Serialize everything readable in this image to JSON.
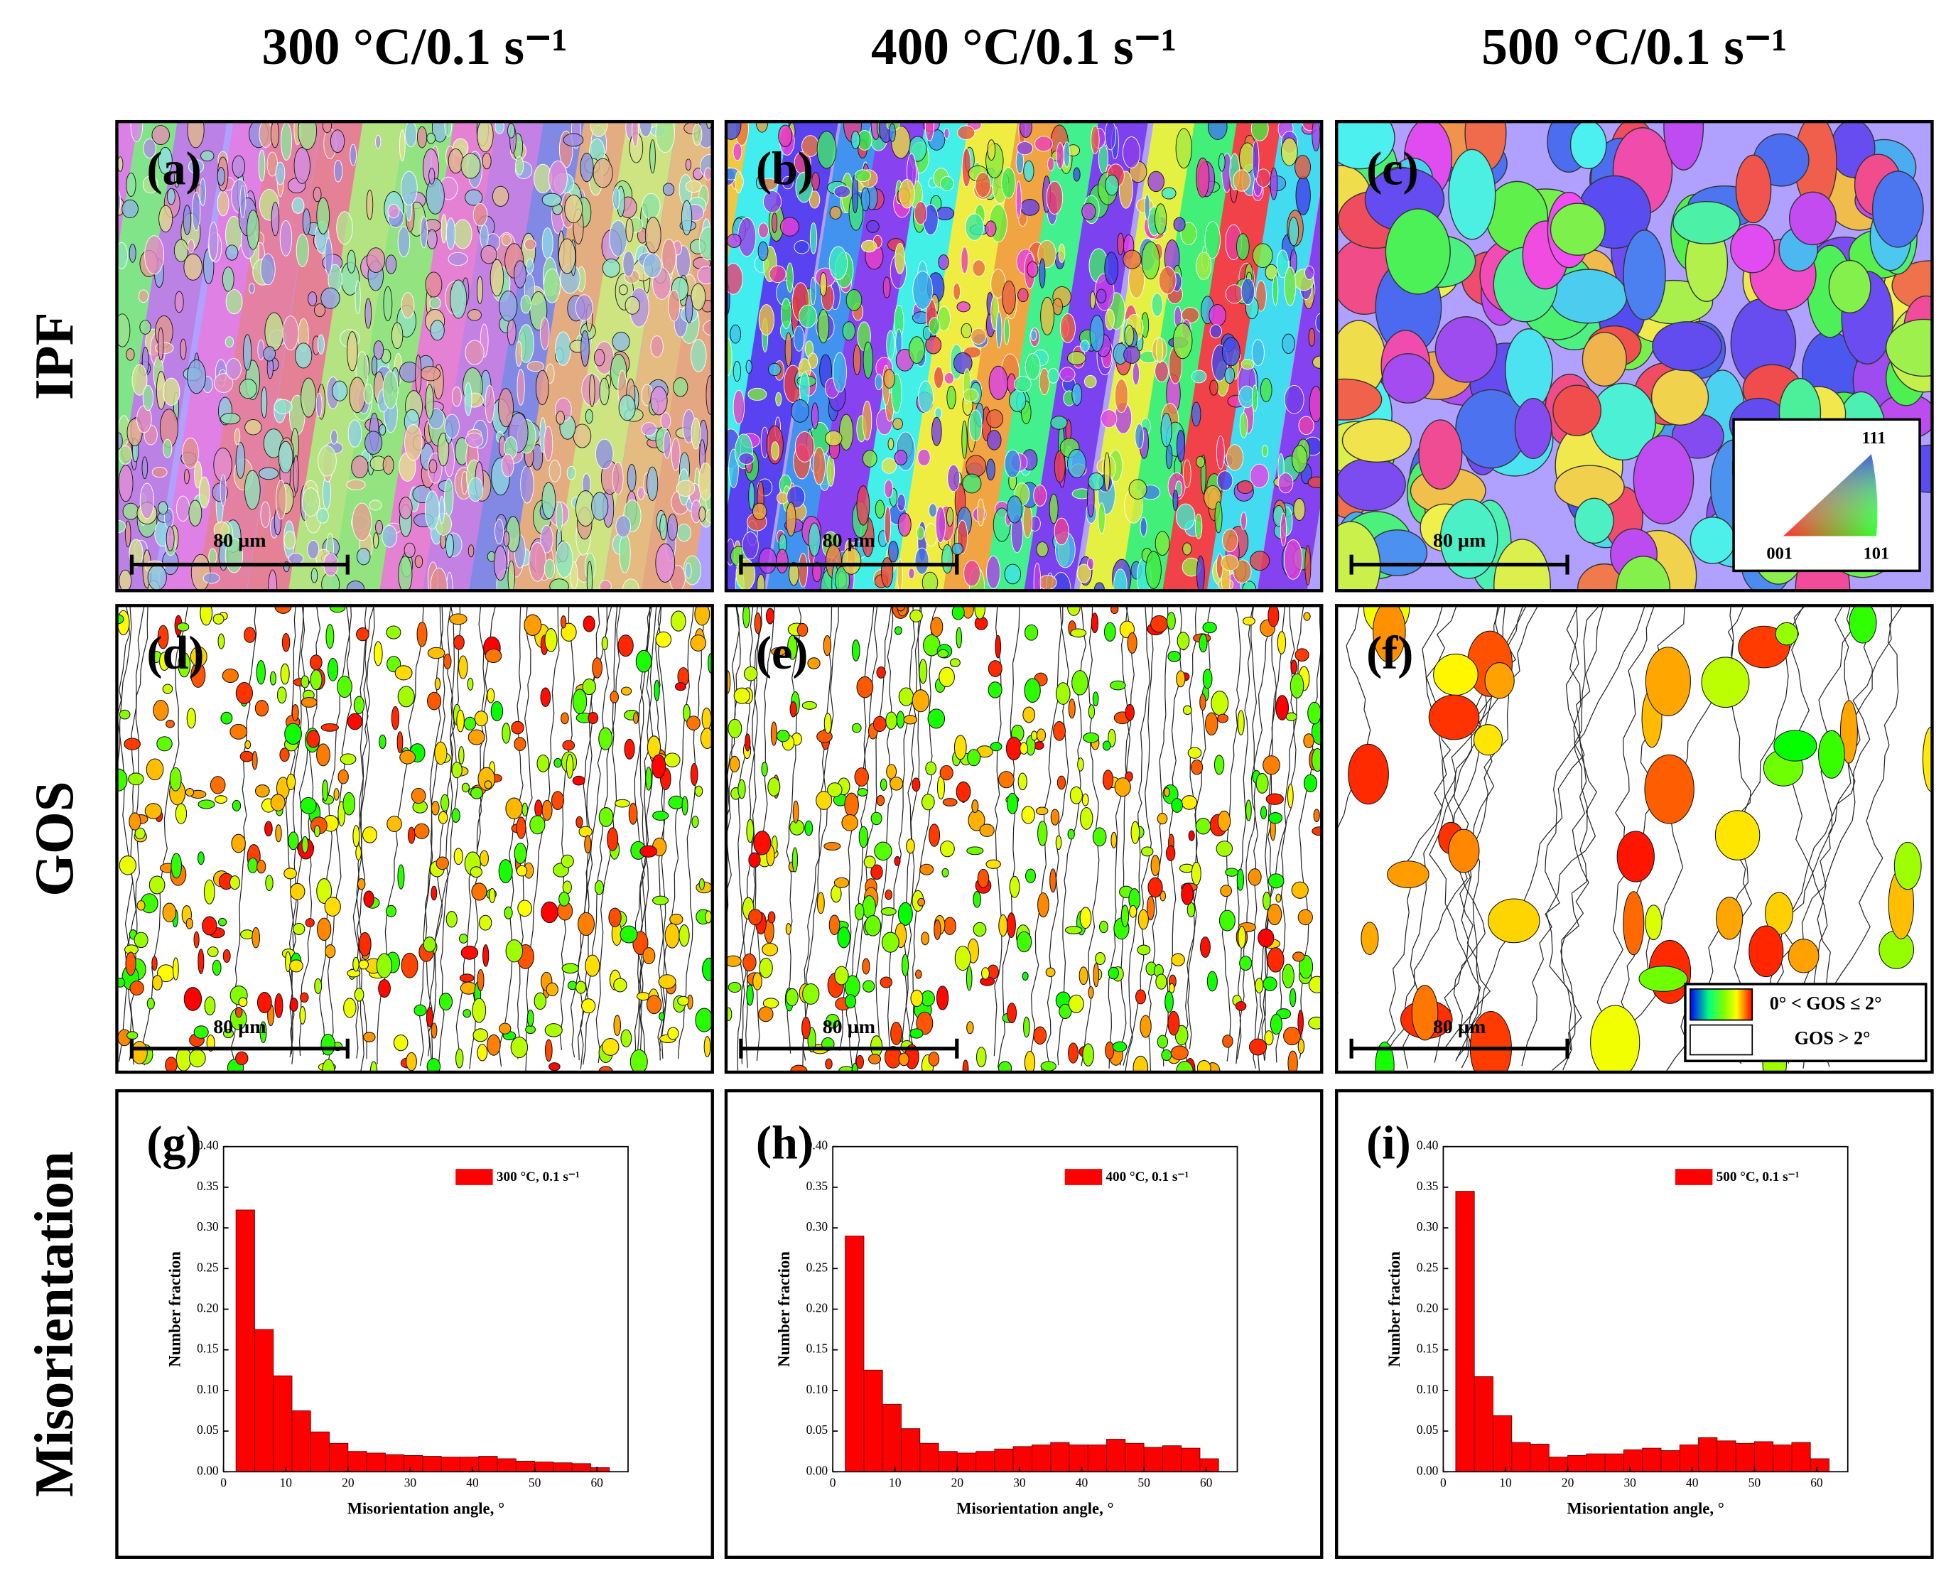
{
  "column_titles": [
    "300 °C/0.1 s⁻¹",
    "400 °C/0.1 s⁻¹",
    "500 °C/0.1 s⁻¹"
  ],
  "row_labels": [
    "IPF",
    "GOS",
    "Misorientation"
  ],
  "panel_labels": [
    "(a)",
    "(b)",
    "(c)",
    "(d)",
    "(e)",
    "(f)",
    "(g)",
    "(h)",
    "(i)"
  ],
  "scale_bar": "80 µm",
  "ipf_legend": {
    "labels": [
      "111",
      "001",
      "101"
    ]
  },
  "gos_legend": {
    "labels": [
      "0° < GOS ≤ 2°",
      "GOS >  2°"
    ]
  },
  "chart_data": [
    {
      "type": "histogram",
      "xlabel": "Misorientation angle, °",
      "ylabel": "Number fraction",
      "bins": [
        2,
        5,
        8,
        11,
        14,
        17,
        20,
        23,
        26,
        29,
        32,
        35,
        38,
        41,
        44,
        47,
        50,
        53,
        56,
        59,
        62
      ],
      "series": [
        {
          "name": "300 °C, 0.1 s⁻¹",
          "color": "#ff0000",
          "values": [
            0.322,
            0.175,
            0.118,
            0.075,
            0.049,
            0.035,
            0.025,
            0.023,
            0.021,
            0.02,
            0.019,
            0.018,
            0.018,
            0.019,
            0.016,
            0.013,
            0.012,
            0.011,
            0.01,
            0.005
          ]
        }
      ],
      "xlim": [
        0,
        65
      ],
      "ylim": [
        0,
        0.4
      ],
      "xticks": [
        0,
        10,
        20,
        30,
        40,
        50,
        60
      ],
      "yticks": [
        {
          "value": 0,
          "label": "0.00"
        },
        {
          "value": 0.05,
          "label": "0.05"
        },
        {
          "value": 0.1,
          "label": "0.10"
        },
        {
          "value": 0.15,
          "label": "0.15"
        },
        {
          "value": 0.2,
          "label": "0.20"
        },
        {
          "value": 0.25,
          "label": "0.25"
        },
        {
          "value": 0.3,
          "label": "0.30"
        },
        {
          "value": 0.35,
          "label": "0.35"
        },
        {
          "value": 0.4,
          "label": "0.40"
        }
      ]
    },
    {
      "type": "histogram",
      "xlabel": "Misorientation angle, °",
      "ylabel": "Number fraction",
      "bins": [
        2,
        5,
        8,
        11,
        14,
        17,
        20,
        23,
        26,
        29,
        32,
        35,
        38,
        41,
        44,
        47,
        50,
        53,
        56,
        59,
        62
      ],
      "series": [
        {
          "name": "400 °C, 0.1 s⁻¹",
          "color": "#ff0000",
          "values": [
            0.29,
            0.125,
            0.083,
            0.053,
            0.035,
            0.025,
            0.023,
            0.025,
            0.028,
            0.031,
            0.033,
            0.036,
            0.033,
            0.033,
            0.04,
            0.035,
            0.03,
            0.032,
            0.029,
            0.016
          ]
        }
      ],
      "xlim": [
        0,
        65
      ],
      "ylim": [
        0,
        0.4
      ],
      "xticks": [
        0,
        10,
        20,
        30,
        40,
        50,
        60
      ],
      "yticks": [
        {
          "value": 0,
          "label": "0.00"
        },
        {
          "value": 0.05,
          "label": "0.05"
        },
        {
          "value": 0.1,
          "label": "0.10"
        },
        {
          "value": 0.15,
          "label": "0.15"
        },
        {
          "value": 0.2,
          "label": "0.20"
        },
        {
          "value": 0.25,
          "label": "0.25"
        },
        {
          "value": 0.3,
          "label": "0.30"
        },
        {
          "value": 0.35,
          "label": "0.35"
        },
        {
          "value": 0.4,
          "label": "0.40"
        }
      ]
    },
    {
      "type": "histogram",
      "xlabel": "Misorientation angle, °",
      "ylabel": "Number fraction",
      "bins": [
        2,
        5,
        8,
        11,
        14,
        17,
        20,
        23,
        26,
        29,
        32,
        35,
        38,
        41,
        44,
        47,
        50,
        53,
        56,
        59,
        62
      ],
      "series": [
        {
          "name": "500 °C, 0.1 s⁻¹",
          "color": "#ff0000",
          "values": [
            0.345,
            0.117,
            0.069,
            0.036,
            0.034,
            0.018,
            0.02,
            0.022,
            0.022,
            0.027,
            0.029,
            0.026,
            0.033,
            0.042,
            0.038,
            0.035,
            0.037,
            0.033,
            0.036,
            0.016
          ]
        }
      ],
      "xlim": [
        0,
        65
      ],
      "ylim": [
        0,
        0.4
      ],
      "xticks": [
        0,
        10,
        20,
        30,
        40,
        50,
        60
      ],
      "yticks": [
        {
          "value": 0,
          "label": "0.00"
        },
        {
          "value": 0.05,
          "label": "0.05"
        },
        {
          "value": 0.1,
          "label": "0.10"
        },
        {
          "value": 0.15,
          "label": "0.15"
        },
        {
          "value": 0.2,
          "label": "0.20"
        },
        {
          "value": 0.25,
          "label": "0.25"
        },
        {
          "value": 0.3,
          "label": "0.30"
        },
        {
          "value": 0.35,
          "label": "0.35"
        },
        {
          "value": 0.4,
          "label": "0.40"
        }
      ]
    }
  ]
}
